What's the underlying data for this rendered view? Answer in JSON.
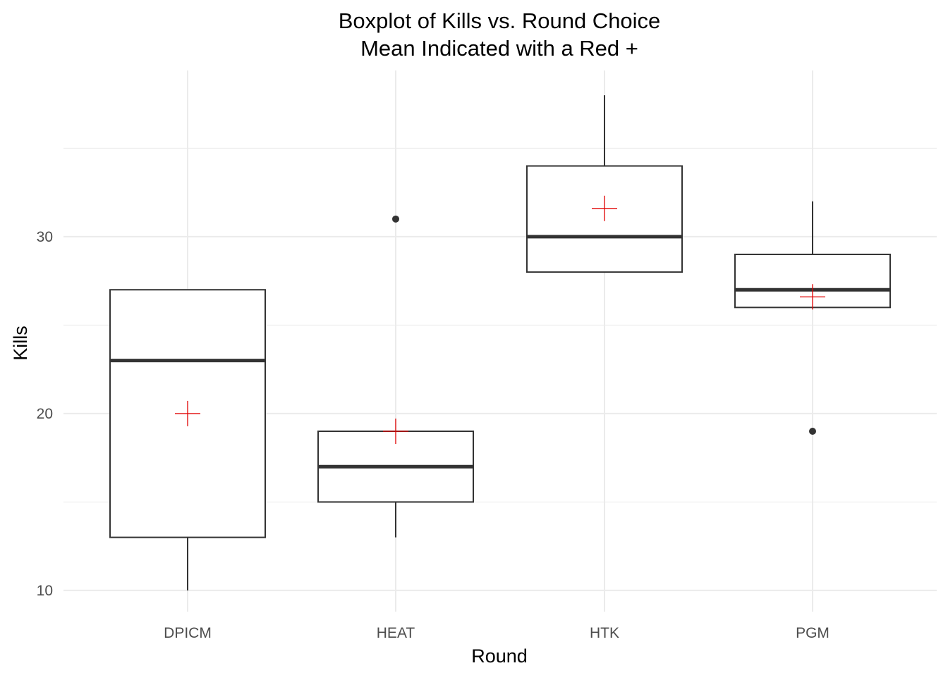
{
  "chart_data": {
    "type": "boxplot",
    "title": "Boxplot of Kills vs. Round Choice",
    "subtitle": "Mean Indicated with a Red +",
    "xlabel": "Round",
    "ylabel": "Kills",
    "ylim": [
      8.8,
      39.4
    ],
    "y_ticks": [
      10,
      20,
      30
    ],
    "y_minor_ticks": [
      15,
      25,
      35
    ],
    "grid": true,
    "legend": "none",
    "colors": {
      "box_stroke": "#333333",
      "median": "#333333",
      "outlier": "#333333",
      "mean_marker": "#e00000",
      "grid": "#ebebeb"
    },
    "categories": [
      "DPICM",
      "HEAT",
      "HTK",
      "PGM"
    ],
    "boxes": [
      {
        "category": "DPICM",
        "whisker_low": 10,
        "q1": 13,
        "median": 23,
        "q3": 27,
        "whisker_high": 27,
        "mean": 20,
        "outliers": []
      },
      {
        "category": "HEAT",
        "whisker_low": 13,
        "q1": 15,
        "median": 17,
        "q3": 19,
        "whisker_high": 19,
        "mean": 19,
        "outliers": [
          31
        ]
      },
      {
        "category": "HTK",
        "whisker_low": 28,
        "q1": 28,
        "median": 30,
        "q3": 34,
        "whisker_high": 38,
        "mean": 31.6,
        "outliers": []
      },
      {
        "category": "PGM",
        "whisker_low": 26,
        "q1": 26,
        "median": 27,
        "q3": 29,
        "whisker_high": 32,
        "mean": 26.6,
        "outliers": [
          19
        ]
      }
    ]
  }
}
